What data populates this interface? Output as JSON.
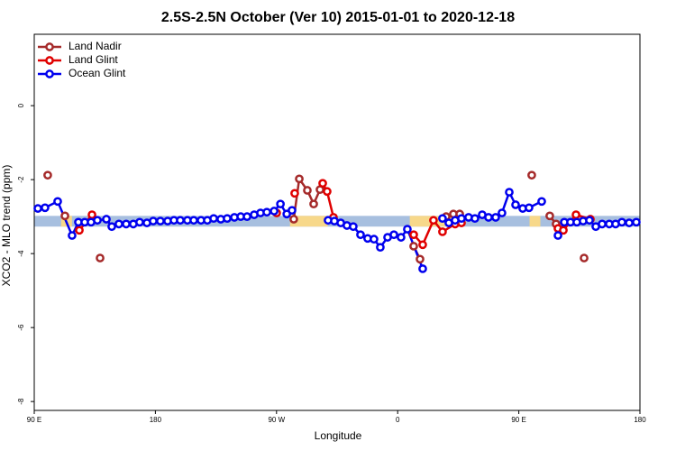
{
  "chart_data": {
    "type": "line",
    "title": "2.5S-2.5N October (Ver 10)   2015-01-01 to 2020-12-18",
    "x_label": "Longitude",
    "y_label": "XCO2 - MLO trend (ppm)",
    "xlim": [
      90,
      540
    ],
    "ylim": [
      -8.24,
      1.93
    ],
    "xticks": [
      {
        "value": 90,
        "label": "90 E"
      },
      {
        "value": 180,
        "label": "180"
      },
      {
        "value": 270,
        "label": "90 W"
      },
      {
        "value": 360,
        "label": "0"
      },
      {
        "value": 450,
        "label": "90 E"
      },
      {
        "value": 540,
        "label": "180"
      }
    ],
    "yticks": [
      0,
      -2,
      -4,
      -6,
      -8
    ],
    "legend": "top-left",
    "band": {
      "y": [
        -3.27,
        -2.98
      ],
      "color": "#a7bfdf"
    },
    "land_spans": {
      "color": "#f7d88a",
      "x": [
        [
          110,
          118
        ],
        [
          280,
          308
        ],
        [
          369,
          400
        ],
        [
          458,
          466
        ]
      ]
    },
    "series": [
      {
        "name": "Land Nadir",
        "color": "#a52a2a",
        "x": [
          100.0,
          112.8,
          138.9,
          282.8,
          286.9,
          292.9,
          297.6,
          302.3,
          371.9,
          376.6,
          396.0,
          401.4,
          406.1,
          459.6,
          473.0,
          477.7,
          498.5
        ],
        "values": [
          -1.88,
          -2.98,
          -4.12,
          -3.07,
          -1.98,
          -2.29,
          -2.66,
          -2.27,
          -3.8,
          -4.15,
          -3.0,
          -2.93,
          -2.93,
          -1.88,
          -2.98,
          -3.2,
          -4.12
        ]
      },
      {
        "name": "Land Glint",
        "color": "#e00000",
        "x": [
          123.5,
          132.9,
          270.1,
          283.5,
          304.3,
          307.6,
          312.3,
          371.9,
          378.6,
          386.6,
          393.3,
          402.7,
          407.4,
          479.1,
          483.1,
          492.5,
          503.2
        ],
        "values": [
          -3.37,
          -2.95,
          -2.9,
          -2.37,
          -2.1,
          -2.32,
          -3.02,
          -3.49,
          -3.76,
          -3.1,
          -3.41,
          -3.2,
          -3.17,
          -3.32,
          -3.37,
          -2.95,
          -3.07
        ]
      },
      {
        "name": "Ocean Glint",
        "color": "#0000ee",
        "x": [
          92.7,
          98.0,
          107.4,
          118.1,
          122.8,
          127.5,
          132.2,
          136.9,
          143.6,
          147.6,
          152.9,
          158.3,
          163.6,
          168.3,
          173.7,
          178.4,
          183.7,
          189.1,
          193.8,
          198.5,
          203.8,
          208.5,
          213.9,
          218.6,
          223.3,
          228.6,
          233.3,
          238.7,
          243.4,
          248.1,
          253.4,
          258.1,
          262.8,
          268.2,
          272.9,
          277.6,
          281.5,
          308.3,
          313.0,
          317.7,
          322.3,
          327.0,
          332.4,
          337.7,
          342.4,
          347.1,
          352.5,
          357.2,
          362.5,
          367.2,
          378.6,
          393.3,
          398.0,
          402.7,
          407.4,
          412.7,
          417.4,
          422.8,
          427.5,
          432.8,
          437.5,
          442.9,
          447.6,
          452.9,
          457.6,
          467.0,
          479.1,
          483.8,
          488.4,
          493.1,
          497.8,
          502.5,
          507.2,
          511.9,
          517.2,
          521.9,
          526.6,
          532.0,
          537.3
        ],
        "values": [
          -2.78,
          -2.76,
          -2.59,
          -3.51,
          -3.15,
          -3.15,
          -3.15,
          -3.1,
          -3.07,
          -3.27,
          -3.2,
          -3.2,
          -3.2,
          -3.15,
          -3.17,
          -3.12,
          -3.12,
          -3.12,
          -3.1,
          -3.1,
          -3.1,
          -3.1,
          -3.1,
          -3.1,
          -3.05,
          -3.07,
          -3.05,
          -3.02,
          -3.0,
          -3.0,
          -2.95,
          -2.9,
          -2.88,
          -2.85,
          -2.66,
          -2.93,
          -2.83,
          -3.1,
          -3.12,
          -3.17,
          -3.24,
          -3.27,
          -3.49,
          -3.59,
          -3.61,
          -3.83,
          -3.56,
          -3.49,
          -3.56,
          -3.34,
          -4.41,
          -3.05,
          -3.17,
          -3.1,
          -3.05,
          -3.02,
          -3.05,
          -2.95,
          -3.02,
          -3.02,
          -2.9,
          -2.34,
          -2.68,
          -2.78,
          -2.76,
          -2.59,
          -3.51,
          -3.15,
          -3.15,
          -3.15,
          -3.12,
          -3.1,
          -3.27,
          -3.2,
          -3.2,
          -3.2,
          -3.15,
          -3.17,
          -3.15
        ]
      }
    ]
  }
}
